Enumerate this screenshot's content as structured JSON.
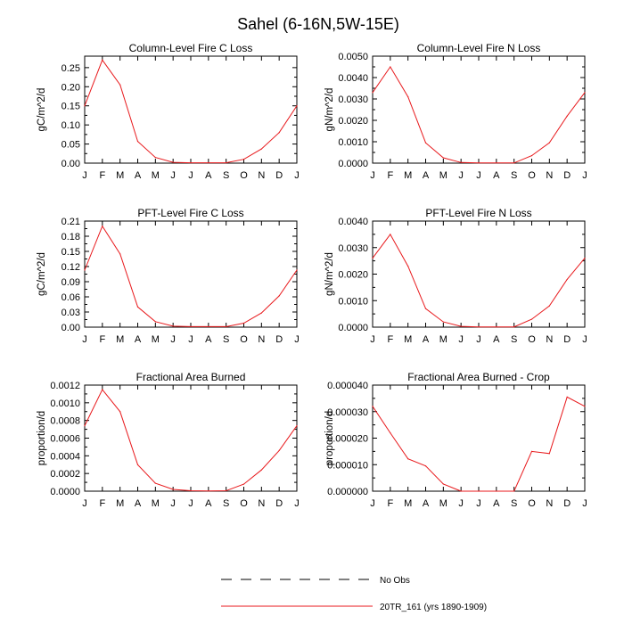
{
  "figure": {
    "title": "Sahel (6-16N,5W-15E)",
    "line_color": "#e8191c",
    "legend": [
      {
        "label": "No Obs",
        "style": "dashed",
        "color": "#000000"
      },
      {
        "label": "20TR_161 (yrs 1890-1909)",
        "style": "solid",
        "color": "#e8191c"
      }
    ]
  },
  "chart_data": [
    {
      "type": "line",
      "title": "Column-Level Fire C Loss",
      "ylabel": "gC/m^2/d",
      "xlabel": "",
      "categories": [
        "J",
        "F",
        "M",
        "A",
        "M",
        "J",
        "J",
        "A",
        "S",
        "O",
        "N",
        "D",
        "J"
      ],
      "ylim": [
        0,
        0.28
      ],
      "yticks": [
        "0.00",
        "0.05",
        "0.10",
        "0.15",
        "0.20",
        "0.25"
      ],
      "series": [
        {
          "name": "20TR_161 (yrs 1890-1909)",
          "values": [
            0.15,
            0.27,
            0.205,
            0.057,
            0.015,
            0.002,
            0.001,
            0.001,
            0.001,
            0.01,
            0.037,
            0.08,
            0.15
          ]
        }
      ]
    },
    {
      "type": "line",
      "title": "Column-Level Fire N Loss",
      "ylabel": "gN/m^2/d",
      "xlabel": "",
      "categories": [
        "J",
        "F",
        "M",
        "A",
        "M",
        "J",
        "J",
        "A",
        "S",
        "O",
        "N",
        "D",
        "J"
      ],
      "ylim": [
        0,
        0.005
      ],
      "yticks": [
        "0.0000",
        "0.0010",
        "0.0020",
        "0.0030",
        "0.0040",
        "0.0050"
      ],
      "series": [
        {
          "name": "20TR_161 (yrs 1890-1909)",
          "values": [
            0.0033,
            0.0045,
            0.0031,
            0.00095,
            0.00025,
            3e-05,
            1e-05,
            1e-05,
            1e-05,
            0.00035,
            0.00095,
            0.0022,
            0.0033
          ]
        }
      ]
    },
    {
      "type": "line",
      "title": "PFT-Level Fire C Loss",
      "ylabel": "gC/m^2/d",
      "xlabel": "",
      "categories": [
        "J",
        "F",
        "M",
        "A",
        "M",
        "J",
        "J",
        "A",
        "S",
        "O",
        "N",
        "D",
        "J"
      ],
      "ylim": [
        0,
        0.21
      ],
      "yticks": [
        "0.00",
        "0.03",
        "0.06",
        "0.09",
        "0.12",
        "0.15",
        "0.18",
        "0.21"
      ],
      "series": [
        {
          "name": "20TR_161 (yrs 1890-1909)",
          "values": [
            0.113,
            0.2,
            0.145,
            0.04,
            0.011,
            0.002,
            0.001,
            0.001,
            0.001,
            0.008,
            0.028,
            0.062,
            0.113
          ]
        }
      ]
    },
    {
      "type": "line",
      "title": "PFT-Level Fire N Loss",
      "ylabel": "gN/m^2/d",
      "xlabel": "",
      "categories": [
        "J",
        "F",
        "M",
        "A",
        "M",
        "J",
        "J",
        "A",
        "S",
        "O",
        "N",
        "D",
        "J"
      ],
      "ylim": [
        0,
        0.004
      ],
      "yticks": [
        "0.0000",
        "0.0010",
        "0.0020",
        "0.0030",
        "0.0040"
      ],
      "series": [
        {
          "name": "20TR_161 (yrs 1890-1909)",
          "values": [
            0.0026,
            0.0035,
            0.0023,
            0.0007,
            0.0002,
            3e-05,
            1e-05,
            1e-05,
            1e-05,
            0.0003,
            0.0008,
            0.0018,
            0.0026
          ]
        }
      ]
    },
    {
      "type": "line",
      "title": "Fractional Area Burned",
      "ylabel": "proportion/d",
      "xlabel": "",
      "categories": [
        "J",
        "F",
        "M",
        "A",
        "M",
        "J",
        "J",
        "A",
        "S",
        "O",
        "N",
        "D",
        "J"
      ],
      "ylim": [
        0,
        0.0012
      ],
      "yticks": [
        "0.0000",
        "0.0002",
        "0.0004",
        "0.0006",
        "0.0008",
        "0.0010",
        "0.0012"
      ],
      "series": [
        {
          "name": "20TR_161 (yrs 1890-1909)",
          "values": [
            0.00074,
            0.00115,
            0.0009,
            0.0003,
            9e-05,
            2e-05,
            5e-06,
            2e-06,
            5e-06,
            8e-05,
            0.00024,
            0.00046,
            0.00074
          ]
        }
      ]
    },
    {
      "type": "line",
      "title": "Fractional Area Burned - Crop",
      "ylabel": "proportion/d",
      "xlabel": "",
      "categories": [
        "J",
        "F",
        "M",
        "A",
        "M",
        "J",
        "J",
        "A",
        "S",
        "O",
        "N",
        "D",
        "J"
      ],
      "ylim": [
        0,
        4e-05
      ],
      "yticks": [
        "0.000000",
        "0.000010",
        "0.000020",
        "0.000030",
        "0.000040"
      ],
      "series": [
        {
          "name": "20TR_161 (yrs 1890-1909)",
          "values": [
            3.2e-05,
            2.2e-05,
            1.22e-05,
            9.5e-06,
            2.7e-06,
            0.0,
            0.0,
            0.0,
            0.0,
            1.5e-05,
            1.42e-05,
            3.55e-05,
            3.2e-05
          ]
        }
      ]
    }
  ]
}
